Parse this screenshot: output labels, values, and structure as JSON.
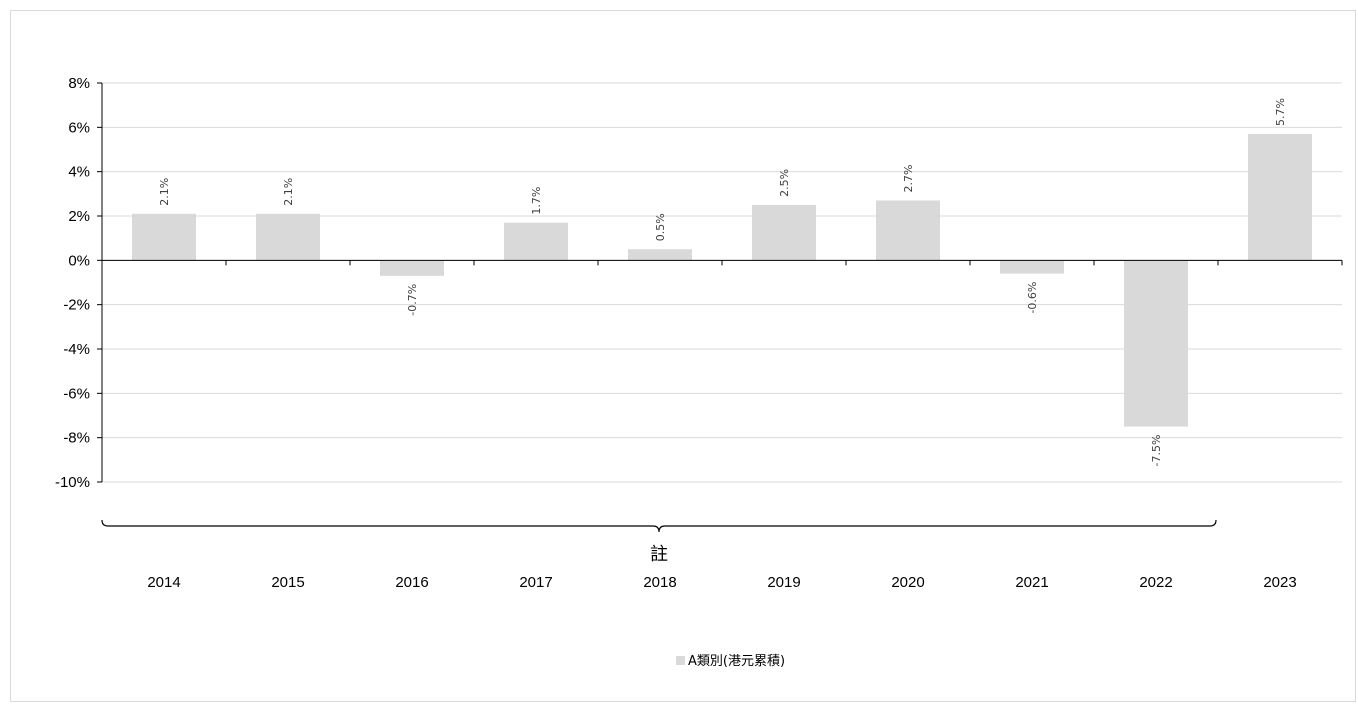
{
  "chart_data": {
    "type": "bar",
    "categories": [
      "2014",
      "2015",
      "2016",
      "2017",
      "2018",
      "2019",
      "2020",
      "2021",
      "2022",
      "2023"
    ],
    "series": [
      {
        "name": "A類別(港元累積)",
        "values": [
          2.1,
          2.1,
          -0.7,
          1.7,
          0.5,
          2.5,
          2.7,
          -0.6,
          -7.5,
          5.7
        ],
        "data_labels": [
          "2.1%",
          "2.1%",
          "-0.7%",
          "1.7%",
          "0.5%",
          "2.5%",
          "2.7%",
          "-0.6%",
          "-7.5%",
          "5.7%"
        ],
        "color": "#d9d9d9"
      }
    ],
    "ylim": [
      -10,
      8
    ],
    "yticks": [
      8,
      6,
      4,
      2,
      0,
      -2,
      -4,
      -6,
      -8,
      -10
    ],
    "ytick_labels": [
      "8%",
      "6%",
      "4%",
      "2%",
      "0%",
      "-2%",
      "-4%",
      "-6%",
      "-8%",
      "-10%"
    ],
    "grid": true,
    "legend_position": "bottom",
    "annotation": {
      "text": "註",
      "spans_categories": [
        "2014",
        "2022"
      ]
    },
    "gridline_color": "#d9d9d9",
    "axis_color": "#000000"
  }
}
